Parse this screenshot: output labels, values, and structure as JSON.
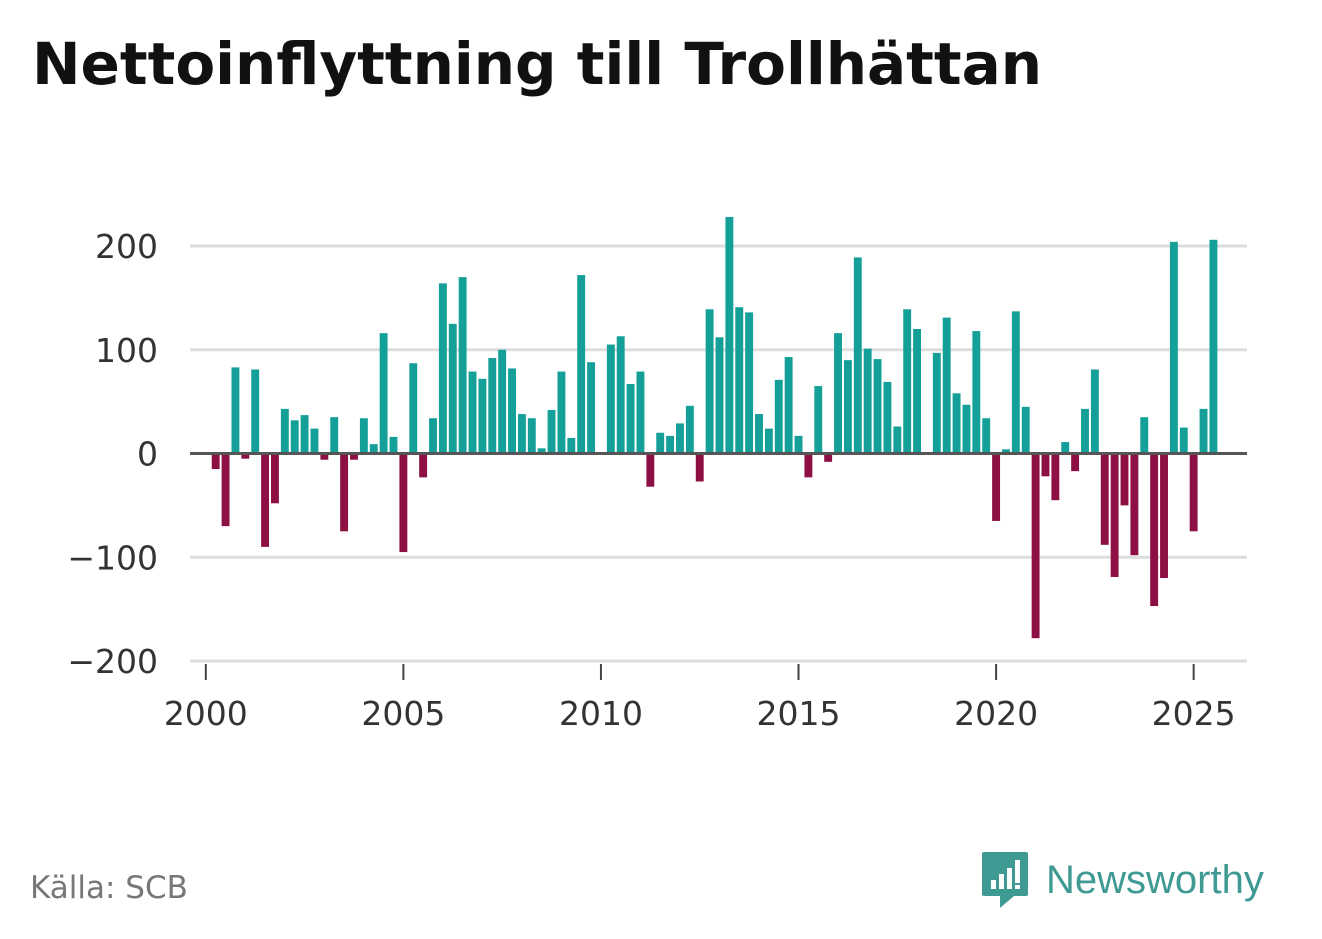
{
  "title": "Nettoinflyttning till Trollhättan",
  "source": "Källa: SCB",
  "brand": {
    "name": "Newsworthy",
    "icon": "newsworthy-logo-icon",
    "color": "#3f9a94"
  },
  "colors": {
    "positive": "#14a099",
    "negative": "#8e0f43",
    "grid": "#dddddd",
    "zero_line": "#555555"
  },
  "chart_data": {
    "type": "bar",
    "title": "Nettoinflyttning till Trollhättan",
    "xlabel": "",
    "ylabel": "",
    "ylim": [
      -200,
      230
    ],
    "xlim": [
      1999.6,
      2026.35
    ],
    "y_ticks": [
      200,
      100,
      0,
      -100,
      -200
    ],
    "y_tick_labels": [
      "200",
      "100",
      "0",
      "−100",
      "−200"
    ],
    "x_ticks": [
      2000,
      2005,
      2010,
      2015,
      2020,
      2025
    ],
    "x_tick_labels": [
      "2000",
      "2005",
      "2010",
      "2015",
      "2020",
      "2025"
    ],
    "grid": true,
    "frequency": "quarterly",
    "start_year": 2000,
    "values": [
      0,
      -15,
      -70,
      83,
      -5,
      81,
      -90,
      -48,
      43,
      32,
      37,
      24,
      -6,
      35,
      -75,
      -6,
      34,
      9,
      116,
      16,
      -95,
      87,
      -23,
      34,
      164,
      125,
      170,
      79,
      72,
      92,
      100,
      82,
      38,
      34,
      5,
      42,
      79,
      15,
      172,
      88,
      0,
      105,
      113,
      67,
      79,
      -32,
      20,
      17,
      29,
      46,
      -27,
      139,
      112,
      228,
      141,
      136,
      38,
      24,
      71,
      93,
      17,
      -23,
      65,
      -8,
      116,
      90,
      189,
      101,
      91,
      69,
      26,
      139,
      120,
      0,
      97,
      131,
      58,
      47,
      118,
      34,
      -65,
      4,
      137,
      45,
      -178,
      -22,
      -45,
      11,
      -17,
      43,
      81,
      -88,
      -119,
      -50,
      -98,
      35,
      -147,
      -120,
      204,
      25,
      -75,
      43,
      206
    ]
  }
}
